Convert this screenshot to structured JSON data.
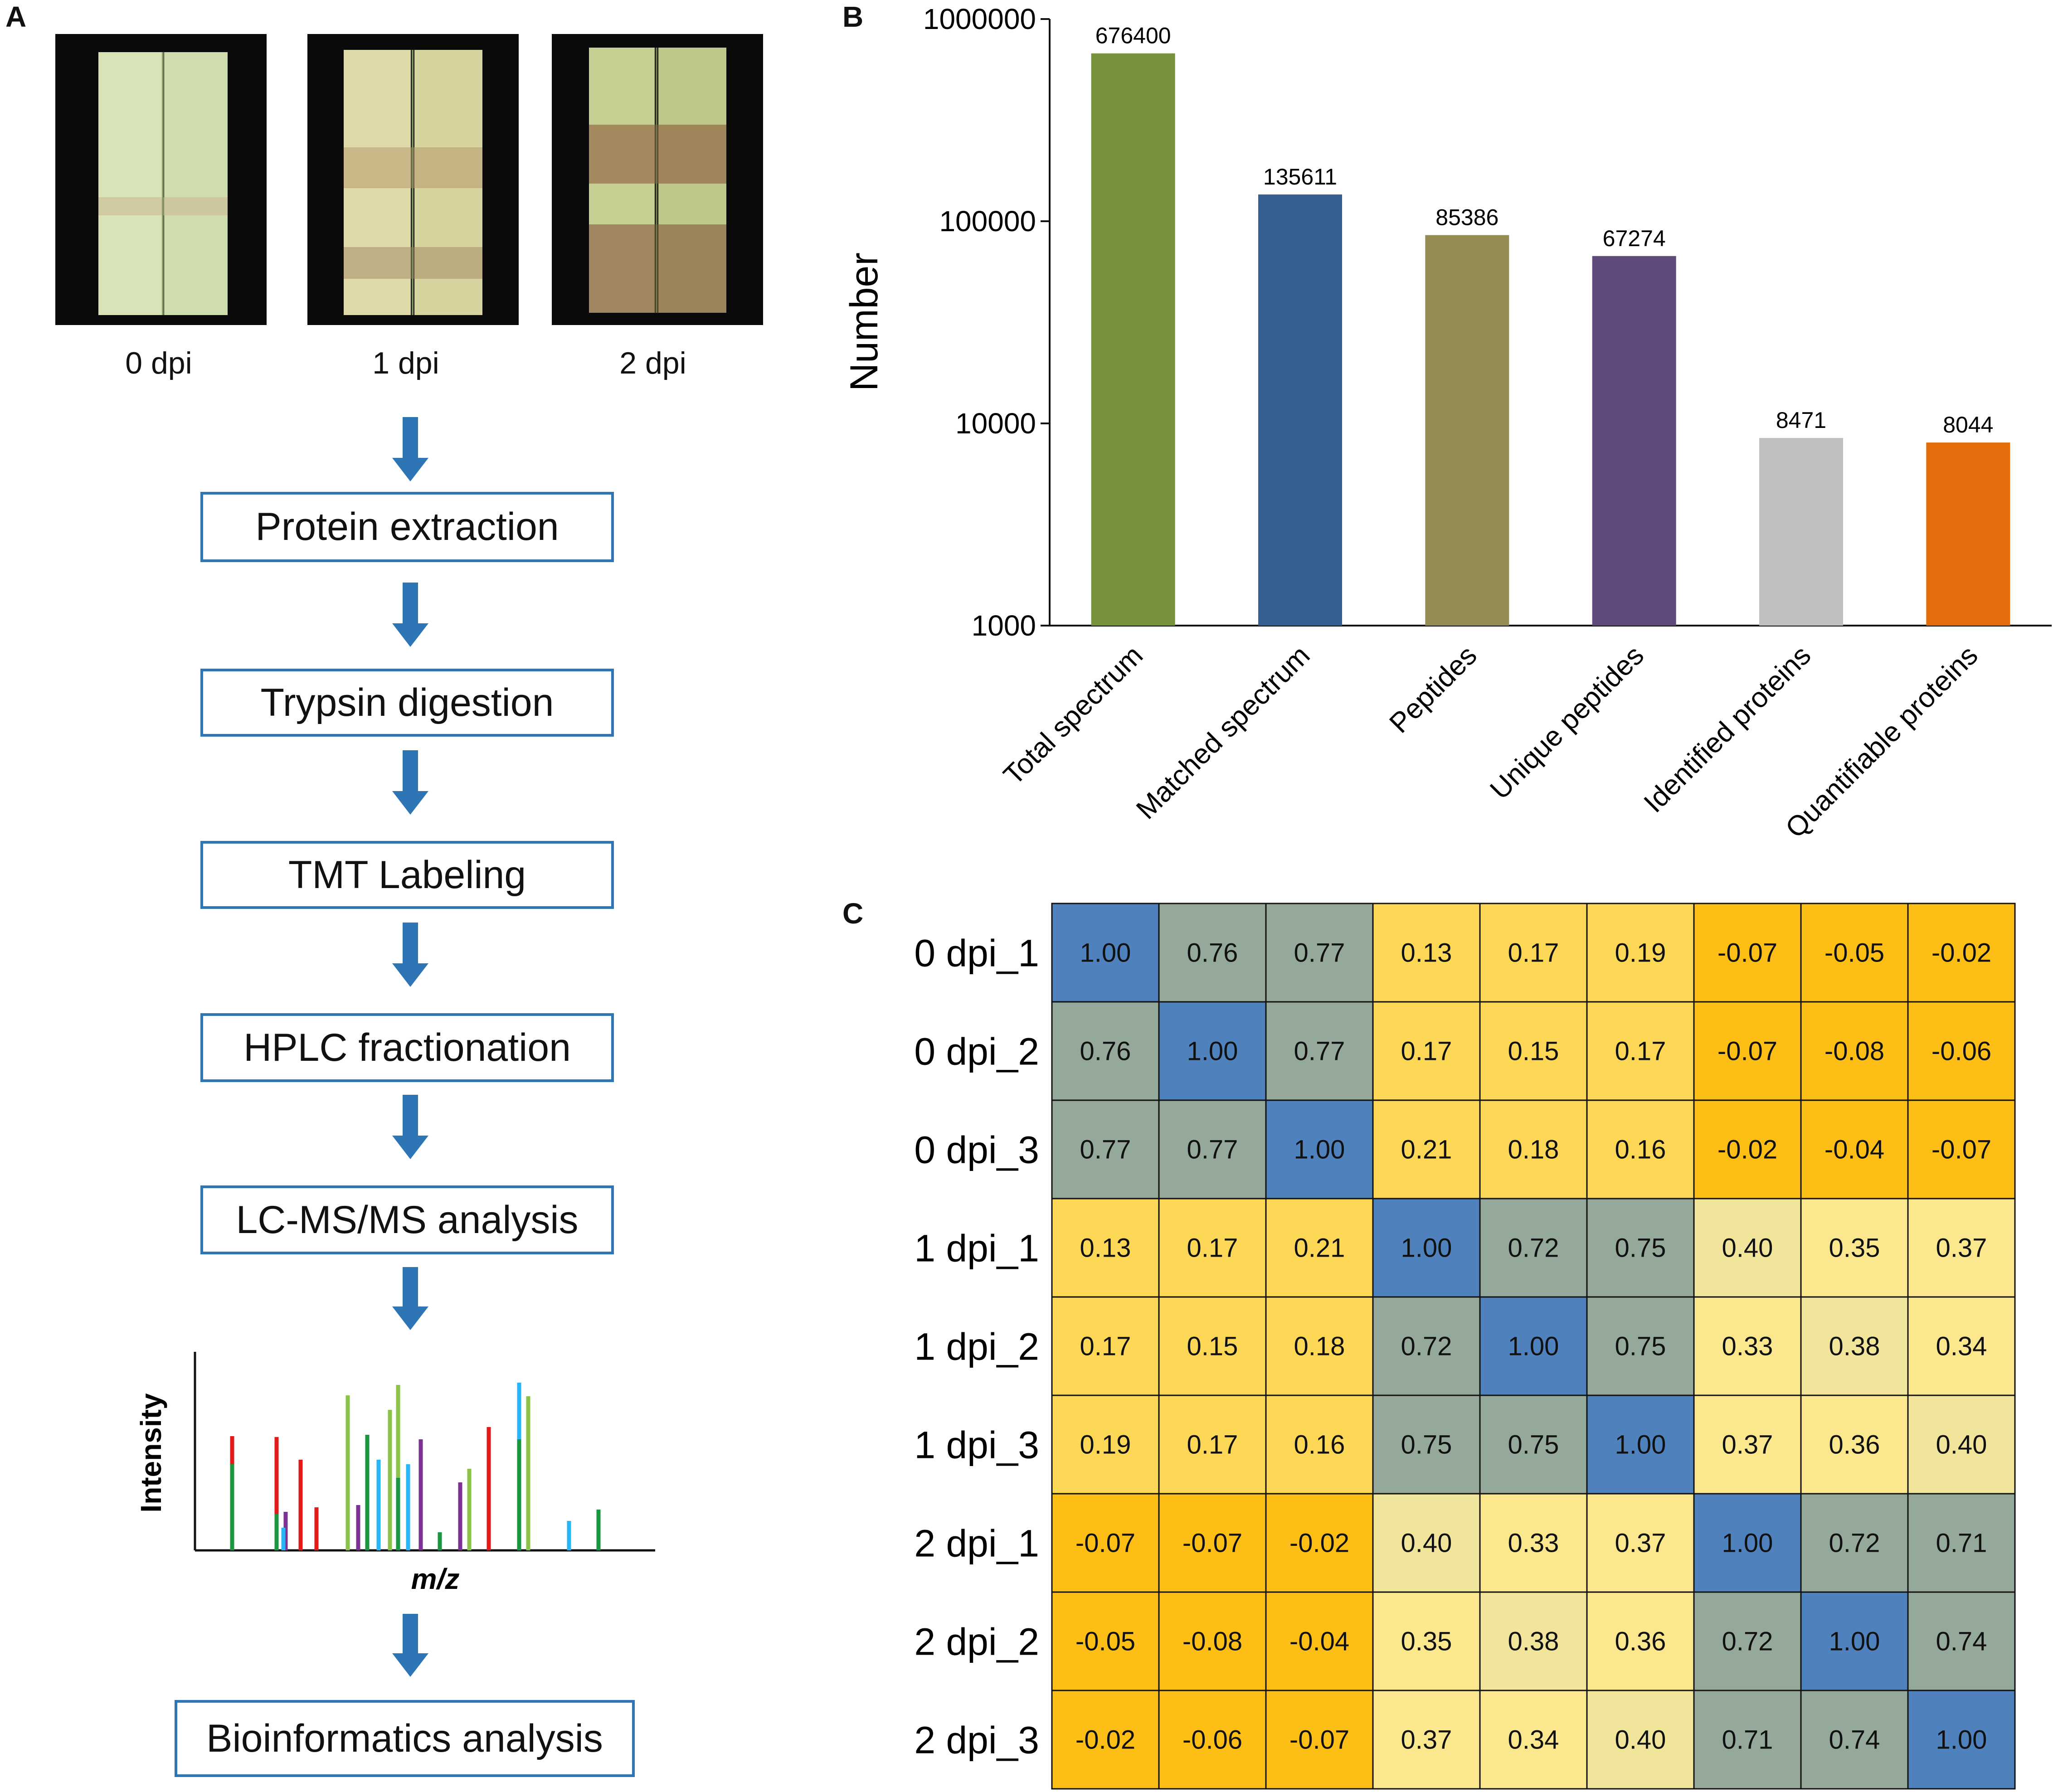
{
  "panels": {
    "a": "A",
    "b": "B",
    "c": "C"
  },
  "photos": [
    {
      "label": "0 dpi"
    },
    {
      "label": "1 dpi"
    },
    {
      "label": "2 dpi"
    }
  ],
  "workflow_steps": [
    "Protein extraction",
    "Trypsin digestion",
    "TMT Labeling",
    "HPLC fractionation",
    "LC-MS/MS analysis",
    "Bioinformatics analysis"
  ],
  "spectrum": {
    "ylabel": "Intensity",
    "xlabel": "m/z"
  },
  "colors": {
    "arrow": "#2e75b6",
    "box_border": "#2e75b6"
  },
  "chart_data": [
    {
      "type": "bar",
      "title": "",
      "ylabel": "Number",
      "xlabel": "",
      "yscale": "log",
      "ylim": [
        1000,
        1000000
      ],
      "yticks": [
        "1000",
        "10000",
        "100000",
        "1000000"
      ],
      "categories": [
        "Total spectrum",
        "Matched spectrum",
        "Peptides",
        "Unique peptides",
        "Identified proteins",
        "Quantifiable proteins"
      ],
      "values": [
        676400,
        135611,
        85386,
        67274,
        8471,
        8044
      ],
      "value_labels": [
        "676400",
        "135611",
        "85386",
        "67274",
        "8471",
        "8044"
      ],
      "colors": [
        "#76933c",
        "#376092",
        "#948a54",
        "#604a7b",
        "#bfbfbf",
        "#e46c0a"
      ]
    },
    {
      "type": "heatmap",
      "title": "",
      "rows": [
        "0 dpi_1",
        "0 dpi_2",
        "0 dpi_3",
        "1 dpi_1",
        "1 dpi_2",
        "1 dpi_3",
        "2 dpi_1",
        "2 dpi_2",
        "2 dpi_3"
      ],
      "values": [
        [
          "1.00",
          "0.76",
          "0.77",
          "0.13",
          "0.17",
          "0.19",
          "-0.07",
          "-0.05",
          "-0.02"
        ],
        [
          "0.76",
          "1.00",
          "0.77",
          "0.17",
          "0.15",
          "0.17",
          "-0.07",
          "-0.08",
          "-0.06"
        ],
        [
          "0.77",
          "0.77",
          "1.00",
          "0.21",
          "0.18",
          "0.16",
          "-0.02",
          "-0.04",
          "-0.07"
        ],
        [
          "0.13",
          "0.17",
          "0.21",
          "1.00",
          "0.72",
          "0.75",
          "0.40",
          "0.35",
          "0.37"
        ],
        [
          "0.17",
          "0.15",
          "0.18",
          "0.72",
          "1.00",
          "0.75",
          "0.33",
          "0.38",
          "0.34"
        ],
        [
          "0.19",
          "0.17",
          "0.16",
          "0.75",
          "0.75",
          "1.00",
          "0.37",
          "0.36",
          "0.40"
        ],
        [
          "-0.07",
          "-0.07",
          "-0.02",
          "0.40",
          "0.33",
          "0.37",
          "1.00",
          "0.72",
          "0.71"
        ],
        [
          "-0.05",
          "-0.08",
          "-0.04",
          "0.35",
          "0.38",
          "0.36",
          "0.72",
          "1.00",
          "0.74"
        ],
        [
          "-0.02",
          "-0.06",
          "-0.07",
          "0.37",
          "0.34",
          "0.40",
          "0.71",
          "0.74",
          "1.00"
        ]
      ]
    }
  ]
}
